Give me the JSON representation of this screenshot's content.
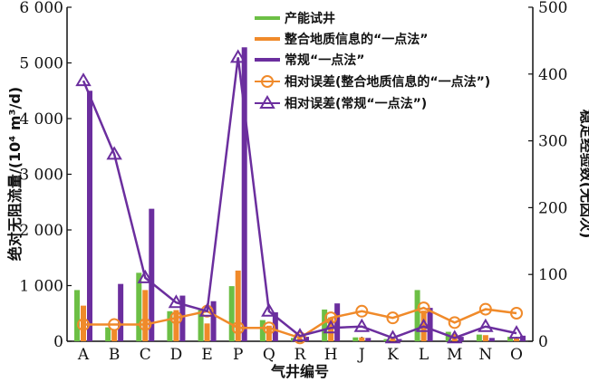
{
  "chart_data": {
    "type": "bar",
    "categories": [
      "A",
      "B",
      "C",
      "D",
      "E",
      "P",
      "Q",
      "R",
      "H",
      "J",
      "K",
      "L",
      "M",
      "N",
      "O"
    ],
    "xlabel": "气井编号",
    "ylabel": "绝对无阻流量/(10⁴ m³/d)",
    "y2label": "稳定经验数(无因次)",
    "ylim": [
      0,
      6000
    ],
    "y2lim": [
      0,
      500
    ],
    "yticks": [
      "0",
      "1 000",
      "2 000",
      "3 000",
      "4 000",
      "5 000",
      "6 000"
    ],
    "yticks_values": [
      0,
      1000,
      2000,
      3000,
      4000,
      5000,
      6000
    ],
    "y2ticks": [
      "0",
      "100",
      "200",
      "300",
      "400",
      "500"
    ],
    "y2ticks_values": [
      0,
      100,
      200,
      300,
      400,
      500
    ],
    "legend_position": "top-center",
    "bar_series": [
      {
        "name": "产能试井",
        "color": "#6cbf45",
        "values": [
          920,
          250,
          1230,
          540,
          560,
          990,
          380,
          60,
          570,
          70,
          40,
          920,
          170,
          120,
          80
        ]
      },
      {
        "name": "整合地质信息的“一点法”",
        "color": "#f08a2a",
        "values": [
          640,
          200,
          920,
          560,
          320,
          1270,
          280,
          50,
          430,
          70,
          50,
          550,
          130,
          110,
          70
        ]
      },
      {
        "name": "常规“一点法”",
        "color": "#6b2e9e",
        "values": [
          4500,
          1030,
          2380,
          820,
          720,
          5280,
          520,
          80,
          680,
          60,
          40,
          600,
          80,
          60,
          100
        ]
      }
    ],
    "line_series": [
      {
        "name": "相对误差(整合地质信息的“一点法”)",
        "color": "#f08a2a",
        "marker": "circle",
        "values": [
          25,
          25,
          25,
          35,
          45,
          20,
          20,
          5,
          35,
          45,
          35,
          50,
          28,
          48,
          42
        ]
      },
      {
        "name": "相对误差(常规“一点法”)",
        "color": "#6b2e9e",
        "marker": "triangle",
        "values": [
          390,
          280,
          95,
          58,
          45,
          425,
          45,
          8,
          20,
          22,
          5,
          22,
          5,
          22,
          12
        ]
      }
    ]
  }
}
